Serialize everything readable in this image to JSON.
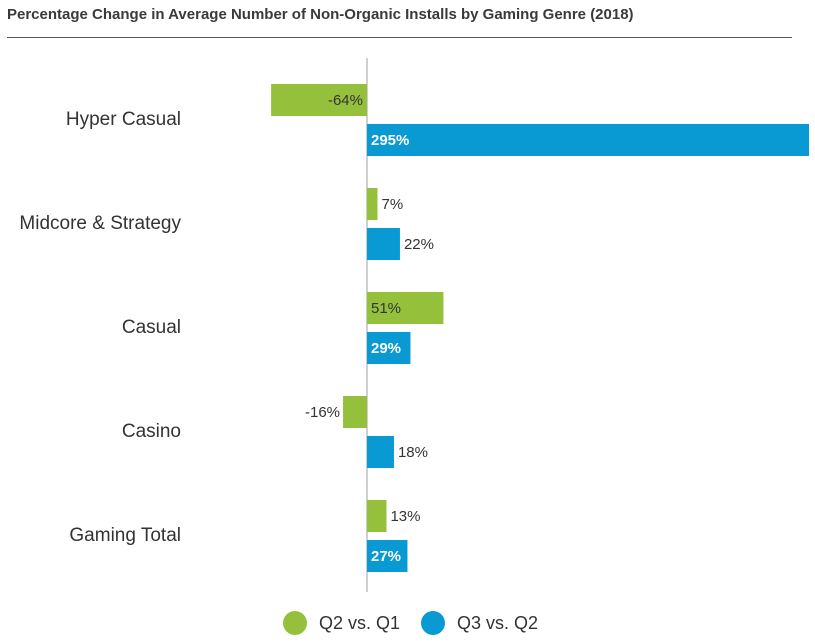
{
  "title": "Percentage Change in Average Number of Non-Organic Installs by Gaming Genre (2018)",
  "colors": {
    "q2_vs_q1": "#95c03c",
    "q3_vs_q2": "#0a9ad3",
    "axis": "#bfbfbf"
  },
  "chart_data": {
    "type": "bar",
    "orientation": "horizontal",
    "title": "Percentage Change in Average Number of Non-Organic Installs by Gaming Genre (2018)",
    "categories": [
      "Hyper Casual",
      "Midcore & Strategy",
      "Casual",
      "Casino",
      "Gaming Total"
    ],
    "series": [
      {
        "name": "Q2 vs. Q1",
        "values": [
          -64,
          7,
          51,
          -16,
          13
        ],
        "labels": [
          "-64%",
          "7%",
          "51%",
          "-16%",
          "13%"
        ]
      },
      {
        "name": "Q3 vs. Q2",
        "values": [
          295,
          22,
          29,
          18,
          27
        ],
        "labels": [
          "295%",
          "22%",
          "29%",
          "18%",
          "27%"
        ]
      }
    ],
    "unit": "%",
    "xlim": [
      -66,
      295
    ],
    "grid": false,
    "legend_position": "bottom"
  }
}
